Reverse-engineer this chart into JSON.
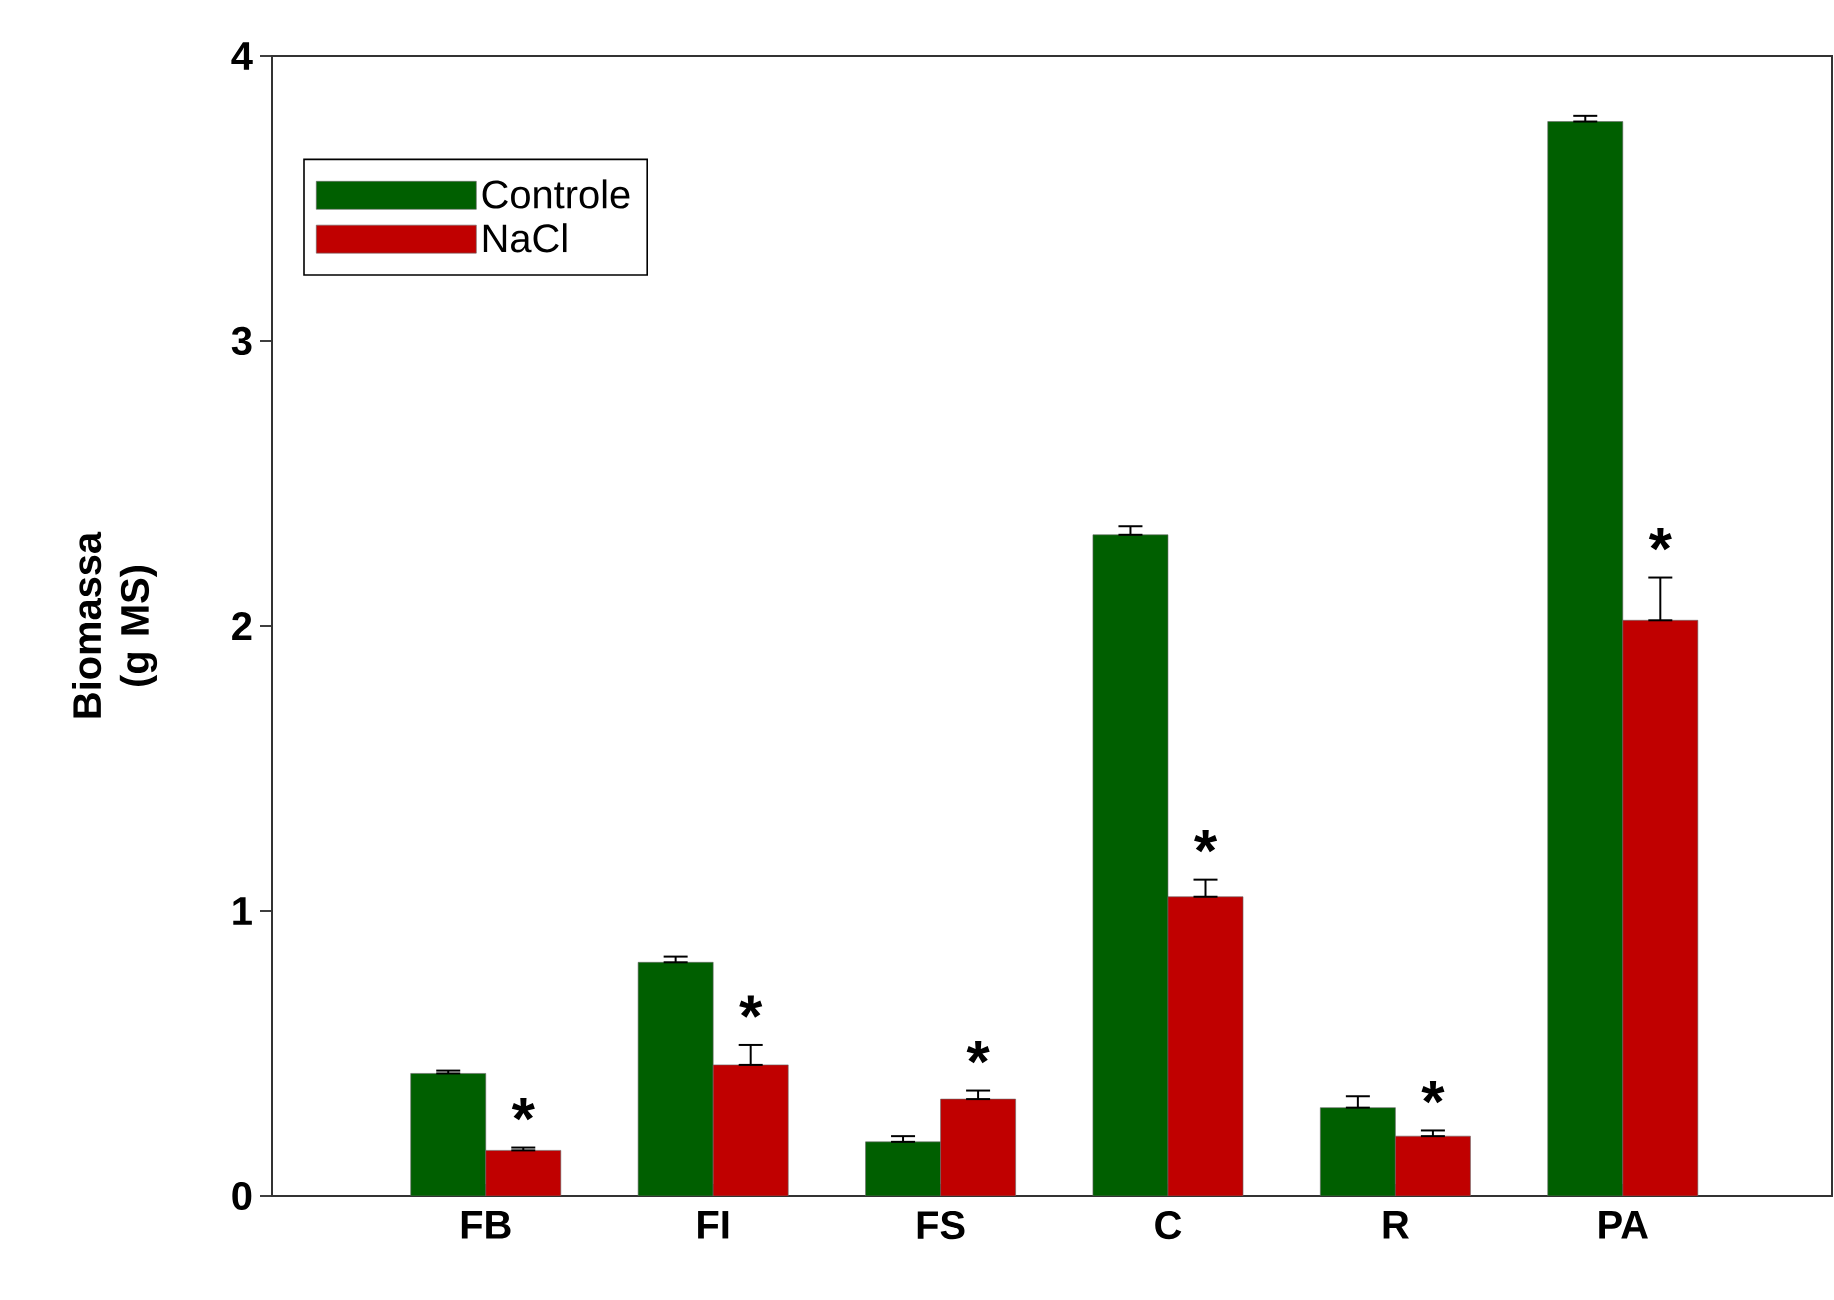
{
  "chart_data": {
    "type": "bar",
    "ylabel": "Biomassa (g MS)",
    "categories": [
      "FB",
      "FI",
      "FS",
      "C",
      "R",
      "PA"
    ],
    "series": [
      {
        "name": "Controle",
        "color": "#005f00",
        "values": [
          0.43,
          0.82,
          0.19,
          2.32,
          0.31,
          3.77
        ],
        "errors": [
          [
            0.43,
            0.44
          ],
          [
            0.82,
            0.84
          ],
          [
            0.19,
            0.21
          ],
          [
            2.32,
            2.35
          ],
          [
            0.31,
            0.35
          ],
          [
            3.77,
            3.79
          ]
        ]
      },
      {
        "name": "NaCl",
        "color": "#c00000",
        "values": [
          0.16,
          0.46,
          0.34,
          1.05,
          0.21,
          2.02
        ],
        "errors": [
          [
            0.16,
            0.17
          ],
          [
            0.46,
            0.53
          ],
          [
            0.34,
            0.37
          ],
          [
            1.05,
            1.11
          ],
          [
            0.21,
            0.23
          ],
          [
            2.02,
            2.17
          ]
        ]
      }
    ],
    "annotations": [
      {
        "text": "*",
        "x": "FB",
        "y": 0.17
      },
      {
        "text": "*",
        "x": "FI",
        "y": 0.53
      },
      {
        "text": "*",
        "x": "FS",
        "y": 0.37
      },
      {
        "text": "*",
        "x": "C",
        "y": 1.11
      },
      {
        "text": "*",
        "x": "R",
        "y": 0.23
      },
      {
        "text": "*",
        "x": "PA",
        "y": 2.17
      }
    ],
    "ylim": [
      0,
      4
    ],
    "yticks": [
      0,
      1,
      2,
      3,
      4
    ],
    "grid": false,
    "legend": "top left"
  }
}
